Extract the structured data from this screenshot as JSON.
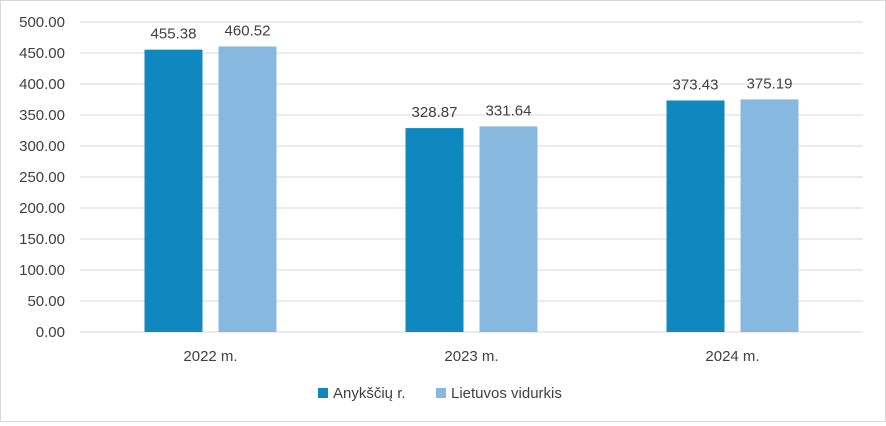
{
  "chart_data": {
    "type": "bar",
    "categories": [
      "2022 m.",
      "2023 m.",
      "2024 m."
    ],
    "series": [
      {
        "name": "Anykščių r.",
        "values": [
          455.38,
          328.87,
          373.43
        ],
        "labels": [
          "455.38",
          "328.87",
          "373.43"
        ],
        "color": "#0e88be"
      },
      {
        "name": "Lietuvos vidurkis",
        "values": [
          460.52,
          331.64,
          375.19
        ],
        "labels": [
          "460.52",
          "331.64",
          "375.19"
        ],
        "color": "#87b9e0"
      }
    ],
    "ylim": [
      0,
      500
    ],
    "yticks": [
      "0.00",
      "50.00",
      "100.00",
      "150.00",
      "200.00",
      "250.00",
      "300.00",
      "350.00",
      "400.00",
      "450.00",
      "500.00"
    ],
    "grid": true,
    "legend_position": "bottom",
    "title": "",
    "xlabel": "",
    "ylabel": ""
  },
  "colors": {
    "gridline": "#d9d9d9",
    "text": "#404040"
  }
}
